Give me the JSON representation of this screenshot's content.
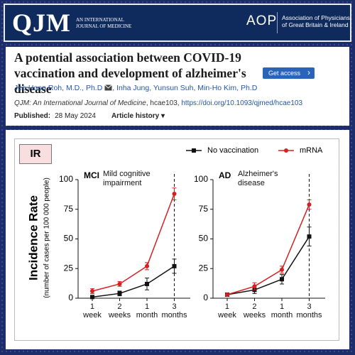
{
  "header": {
    "journal_logo": "QJM",
    "journal_subtitle": "AN INTERNATIONAL JOURNAL OF MEDICINE",
    "society_logo": "AOP",
    "society_name": "Association of Physicians of Great Britain & Ireland"
  },
  "article": {
    "title": "A potential association between COVID-19 vaccination and development of alzheimer's disease",
    "button": "Get access",
    "lead_author": "Jee Hoon Roh, M.D., Ph.D",
    "co_authors": ", Inha Jung, Yunsun Suh, Min-Ho Kim, Ph.D",
    "journal": "QJM: An International Journal of Medicine",
    "article_id": ", hcae103, ",
    "doi": "https://doi.org/10.1093/qjmed/hcae103",
    "published_label": "Published:",
    "published_date": "28 May 2024",
    "history": "Article history ▾"
  },
  "figure_label": "IR",
  "y_label": "Incidence Rate",
  "y_sublabel": "(number of cases per 100 000 people)",
  "chart_data": [
    {
      "type": "line",
      "label": "MCI",
      "subtitle": "Mild cognitive impairment",
      "categories": [
        "1 week",
        "2 weeks",
        "1 month",
        "3 months"
      ],
      "series": [
        {
          "name": "No vaccination",
          "color": "#111111",
          "marker": "square",
          "values": [
            1,
            4,
            12,
            27
          ],
          "errors": [
            1,
            2,
            5,
            6
          ]
        },
        {
          "name": "mRNA",
          "color": "#d42020",
          "marker": "circle",
          "values": [
            6,
            12,
            27,
            88
          ],
          "errors": [
            2,
            2,
            3,
            5
          ]
        }
      ],
      "ylim": [
        0,
        100
      ],
      "yticks": [
        0,
        25,
        50,
        75,
        100
      ]
    },
    {
      "type": "line",
      "label": "AD",
      "subtitle": "Alzheimer's disease",
      "categories": [
        "1 week",
        "2 weeks",
        "1 month",
        "3 months"
      ],
      "series": [
        {
          "color": "#111111",
          "marker": "square",
          "values": [
            3,
            7,
            16,
            52
          ],
          "errors": [
            1,
            3,
            4,
            8
          ]
        },
        {
          "color": "#d42020",
          "marker": "circle",
          "values": [
            3,
            10,
            24,
            79
          ],
          "errors": [
            1,
            3,
            3,
            4
          ]
        }
      ],
      "ylim": [
        0,
        100
      ],
      "yticks": [
        0,
        25,
        50,
        75,
        100
      ]
    }
  ]
}
